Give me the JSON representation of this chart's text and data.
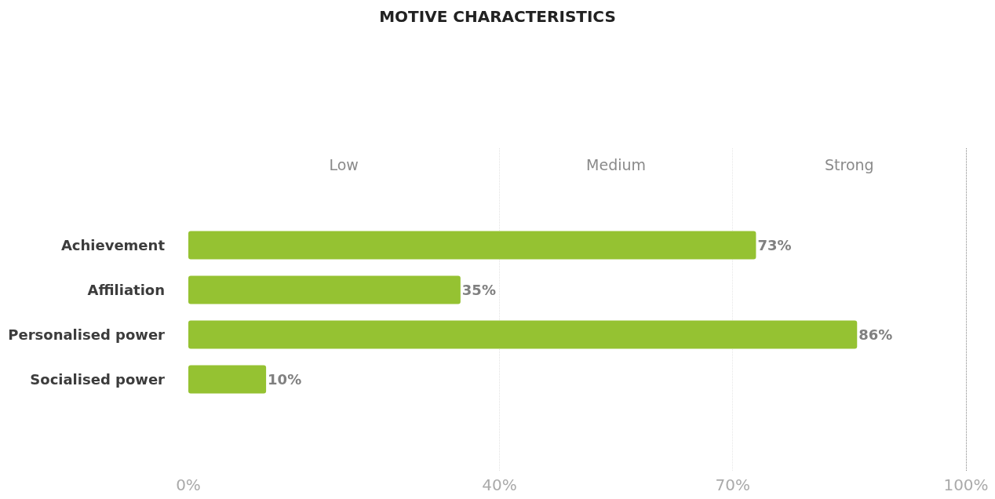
{
  "chart_data": {
    "type": "bar",
    "title": "MOTIVE CHARACTERISTICS",
    "orientation": "horizontal",
    "categories": [
      "Achievement",
      "Affiliation",
      "Personalised power",
      "Socialised power"
    ],
    "values": [
      73,
      35,
      86,
      10
    ],
    "color": "#95c232",
    "value_labels": [
      "73%",
      "35%",
      "86%",
      "10%"
    ],
    "xlim": [
      0,
      100
    ],
    "xticks": [
      {
        "value": 0,
        "label": "0%"
      },
      {
        "value": 40,
        "label": "40%"
      },
      {
        "value": 70,
        "label": "70%"
      },
      {
        "value": 100,
        "label": "100%"
      }
    ],
    "grid": "x",
    "bands": [
      {
        "axis": "x",
        "from": 0,
        "to": 40,
        "label": "Low",
        "color": "#ffffff"
      },
      {
        "axis": "x",
        "from": 40,
        "to": 70,
        "label": "Medium",
        "color": "#ffffff"
      },
      {
        "axis": "x",
        "from": 70,
        "to": 100,
        "label": "Strong",
        "color": "#ffffff"
      }
    ]
  }
}
